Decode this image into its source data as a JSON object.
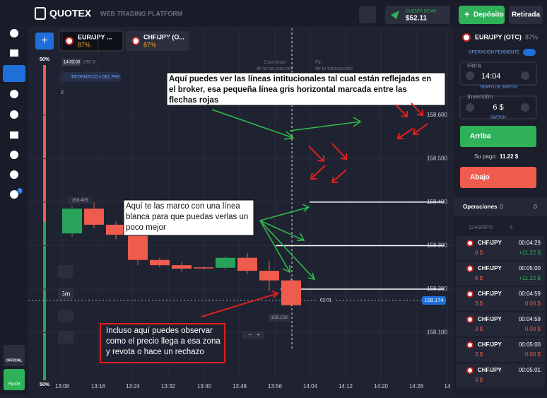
{
  "header": {
    "brand": "QUOTEX",
    "subtitle": "WEB TRADING PLATFORM",
    "account_label": "CUENTA DEMO",
    "balance": "$52.11",
    "deposit": "Depósito",
    "withdraw": "Retirada"
  },
  "tabs": [
    {
      "pair": "EUR/JPY ...",
      "payout": "87%"
    },
    {
      "pair": "CHF/JPY (O...",
      "payout": "87%"
    }
  ],
  "chart_info": {
    "pair_info": "INFORMACIÓN DEL PAR",
    "time": "14:03:00",
    "timezone": "UTC-3",
    "up_pct": "50%",
    "down_pct": "50%",
    "count": "2",
    "timeframe": "5m",
    "start_label": [
      "Comienzo",
      "de la transacción"
    ],
    "end_label": [
      "Fin",
      "de la transacción"
    ],
    "high_label": "158.405",
    "low_label": "158.159",
    "current_price": {
      "value": 158.174,
      "label": "158.174"
    },
    "timer": "02:01"
  },
  "chart_data": {
    "type": "candlestick",
    "ylim": [
      157.987,
      158.803
    ],
    "yticks": [
      {
        "value": 158.6,
        "label": "158.600"
      },
      {
        "value": 158.5,
        "label": "158.500"
      },
      {
        "value": 158.4,
        "label": "158.400"
      },
      {
        "value": 158.3,
        "label": "158.300"
      },
      {
        "value": 158.2,
        "label": "158.200"
      },
      {
        "value": 158.1,
        "label": "158.100"
      }
    ],
    "xticks": [
      "13:08",
      "13:16",
      "13:24",
      "13:32",
      "13:40",
      "13:48",
      "13:56",
      "14:04",
      "14:12",
      "14:20",
      "14:28",
      "14"
    ],
    "up_color": "#27a35a",
    "down_color": "#ef5b4c",
    "open": [
      158.328,
      158.385,
      158.348,
      158.325,
      158.267,
      158.255,
      158.25,
      158.249,
      158.272,
      158.242,
      158.22
    ],
    "high": [
      158.39,
      158.4,
      158.356,
      158.33,
      158.272,
      158.262,
      158.252,
      158.275,
      158.283,
      158.265,
      158.225
    ],
    "low": [
      158.32,
      158.34,
      158.315,
      158.255,
      158.25,
      158.24,
      158.246,
      158.245,
      158.235,
      158.195,
      158.16
    ],
    "close": [
      158.385,
      158.348,
      158.325,
      158.267,
      158.255,
      158.247,
      158.249,
      158.272,
      158.242,
      158.22,
      158.163
    ],
    "levels": [
      158.4,
      158.3,
      158.2
    ]
  },
  "annotations": [
    {
      "lines": [
        "Aquí puedes ver las líneas intitucionales tal cual están reflejadas en",
        "el broker, esa pequeña línea gris horizontal marcada entre las",
        "flechas rojas"
      ]
    },
    {
      "lines": [
        "Aquí te las marco con una línea",
        "blanca para que puedas verlas un",
        "poco mejor"
      ]
    },
    {
      "lines": [
        "Incluso aquí puedes observar",
        "como el precio llega a esa zona",
        "y revota o hace un rechazo"
      ]
    }
  ],
  "sidebar": {
    "official": "OFFICIAL",
    "help": "Ayuda",
    "badge": "1"
  },
  "panel": {
    "pair": "EUR/JPY (OTC)",
    "payout": "87%",
    "pending": "OPERACIÓN PENDIENTE",
    "time_label": "Hora",
    "time": "14:04",
    "switch_time": "TIEMPO DE SWITCH",
    "amount_label": "Inversión",
    "amount": "6 $",
    "switch": "SWITCH",
    "up": "Arriba",
    "payout_label": "Su pago:",
    "payout_value": "11.22 $",
    "down": "Abajo",
    "operations": "Operaciones",
    "ops_count": "0",
    "ops_count2": "0",
    "date": "12 AGOSTO",
    "date_count": "0",
    "trades": [
      {
        "pair": "CHF/JPY",
        "time": "00:04:29",
        "amount": "6 $",
        "result": "+11.22 $"
      },
      {
        "pair": "CHF/JPY",
        "time": "00:05:00",
        "amount": "6 $",
        "result": "+11.22 $"
      },
      {
        "pair": "CHF/JPY",
        "time": "00:04:59",
        "amount": "3 $",
        "result": "0.00 $"
      },
      {
        "pair": "CHF/JPY",
        "time": "00:04:59",
        "amount": "3 $",
        "result": "0.00 $"
      },
      {
        "pair": "CHF/JPY",
        "time": "00:05:00",
        "amount": "3 $",
        "result": "0.00 $"
      },
      {
        "pair": "CHF/JPY",
        "time": "00:05:01",
        "amount": "3 $",
        "result": ""
      }
    ]
  }
}
